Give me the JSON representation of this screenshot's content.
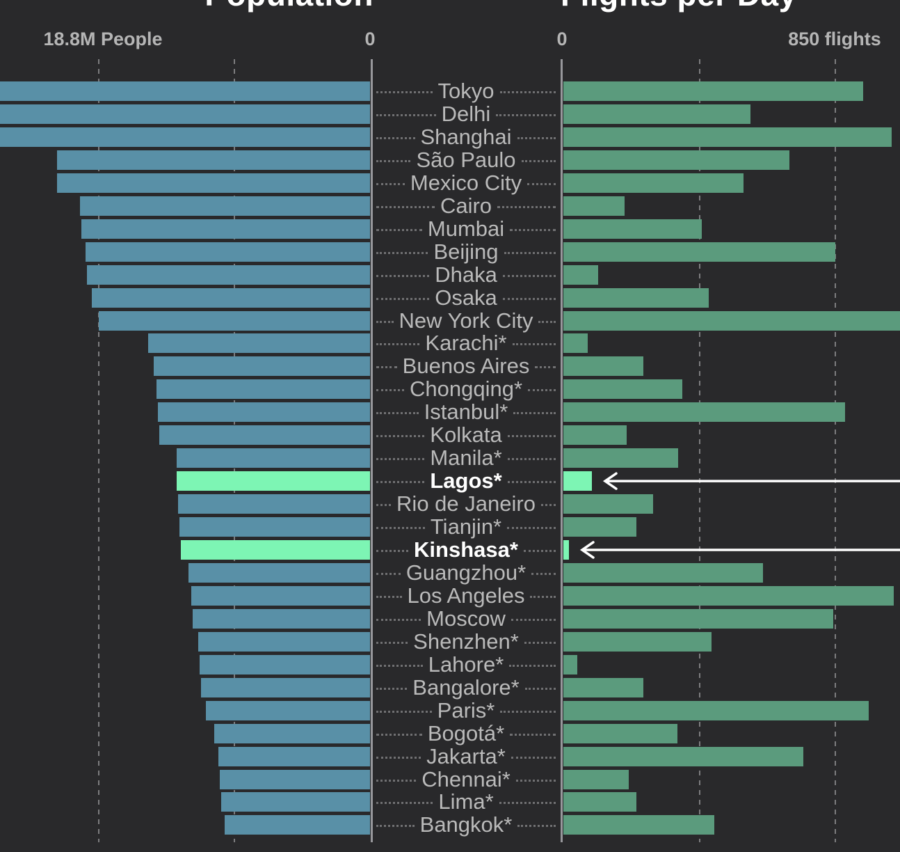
{
  "colors": {
    "background": "#29292b",
    "population_bar": "#5990a7",
    "flights_bar": "#5b9b7d",
    "highlight_bar": "#7df5b4",
    "city_label": "#bababa",
    "highlight_label": "#ffffff",
    "axis_label": "#b5b5b5",
    "title": "#ffffff",
    "gridline_dash": "#7d7d7f",
    "zero_axis": "#97979b",
    "leader_dot": "#707072",
    "arrow": "#ffffff"
  },
  "chart_data": {
    "type": "bar",
    "layout": "mirrored horizontal bars with shared centered city labels; left bars grow right-to-left, right bars grow left-to-right",
    "footnote_marker": "* shown after some city names",
    "left_chart": {
      "title": "Population",
      "unit": "millions of people",
      "axis": {
        "zero_label": "0",
        "max_label": "18.8M People",
        "gridline_values": [
          9.4,
          18.8
        ],
        "direction": "right-to-left",
        "clipped_at_value": 25.6
      }
    },
    "right_chart": {
      "title": "Flights per Day",
      "unit": "flights",
      "axis": {
        "zero_label": "0",
        "max_label": "850 flights",
        "gridline_values": [
          425,
          850
        ],
        "direction": "left-to-right",
        "clipped_at_value": 1052
      }
    },
    "cities": [
      {
        "label": "Tokyo",
        "population_m": null,
        "population_clipped": true,
        "flights_per_day": 938,
        "flights_clipped": false,
        "highlight": false
      },
      {
        "label": "Delhi",
        "population_m": null,
        "population_clipped": true,
        "flights_per_day": 585,
        "flights_clipped": false,
        "highlight": false
      },
      {
        "label": "Shanghai",
        "population_m": null,
        "population_clipped": true,
        "flights_per_day": 1025,
        "flights_clipped": false,
        "highlight": false
      },
      {
        "label": "São Paulo",
        "population_m": 21.7,
        "population_clipped": false,
        "flights_per_day": 706,
        "flights_clipped": false,
        "highlight": false
      },
      {
        "label": "Mexico City",
        "population_m": 21.7,
        "population_clipped": false,
        "flights_per_day": 562,
        "flights_clipped": false,
        "highlight": false
      },
      {
        "label": "Cairo",
        "population_m": 20.1,
        "population_clipped": false,
        "flights_per_day": 192,
        "flights_clipped": false,
        "highlight": false
      },
      {
        "label": "Mumbai",
        "population_m": 20.0,
        "population_clipped": false,
        "flights_per_day": 433,
        "flights_clipped": false,
        "highlight": false
      },
      {
        "label": "Beijing",
        "population_m": 19.7,
        "population_clipped": false,
        "flights_per_day": 850,
        "flights_clipped": false,
        "highlight": false
      },
      {
        "label": "Dhaka",
        "population_m": 19.6,
        "population_clipped": false,
        "flights_per_day": 109,
        "flights_clipped": false,
        "highlight": false
      },
      {
        "label": "Osaka",
        "population_m": 19.3,
        "population_clipped": false,
        "flights_per_day": 455,
        "flights_clipped": false,
        "highlight": false
      },
      {
        "label": "New York City",
        "population_m": 18.8,
        "population_clipped": false,
        "flights_per_day": null,
        "flights_clipped": true,
        "highlight": false
      },
      {
        "label": "Karachi*",
        "population_m": 15.4,
        "population_clipped": false,
        "flights_per_day": 76,
        "flights_clipped": false,
        "highlight": false
      },
      {
        "label": "Buenos Aires",
        "population_m": 15.0,
        "population_clipped": false,
        "flights_per_day": 249,
        "flights_clipped": false,
        "highlight": false
      },
      {
        "label": "Chongqing*",
        "population_m": 14.8,
        "population_clipped": false,
        "flights_per_day": 372,
        "flights_clipped": false,
        "highlight": false
      },
      {
        "label": "Istanbul*",
        "population_m": 14.7,
        "population_clipped": false,
        "flights_per_day": 881,
        "flights_clipped": false,
        "highlight": false
      },
      {
        "label": "Kolkata",
        "population_m": 14.6,
        "population_clipped": false,
        "flights_per_day": 198,
        "flights_clipped": false,
        "highlight": false
      },
      {
        "label": "Manila*",
        "population_m": 13.4,
        "population_clipped": false,
        "flights_per_day": 359,
        "flights_clipped": false,
        "highlight": false
      },
      {
        "label": "Lagos*",
        "population_m": 13.4,
        "population_clipped": false,
        "flights_per_day": 89,
        "flights_clipped": false,
        "highlight": true
      },
      {
        "label": "Rio de Janeiro",
        "population_m": 13.3,
        "population_clipped": false,
        "flights_per_day": 280,
        "flights_clipped": false,
        "highlight": false
      },
      {
        "label": "Tianjin*",
        "population_m": 13.2,
        "population_clipped": false,
        "flights_per_day": 229,
        "flights_clipped": false,
        "highlight": false
      },
      {
        "label": "Kinshasa*",
        "population_m": 13.1,
        "population_clipped": false,
        "flights_per_day": 17,
        "flights_clipped": false,
        "highlight": true
      },
      {
        "label": "Guangzhou*",
        "population_m": 12.6,
        "population_clipped": false,
        "flights_per_day": 624,
        "flights_clipped": false,
        "highlight": false
      },
      {
        "label": "Los Angeles",
        "population_m": 12.4,
        "population_clipped": false,
        "flights_per_day": 1032,
        "flights_clipped": false,
        "highlight": false
      },
      {
        "label": "Moscow",
        "population_m": 12.3,
        "population_clipped": false,
        "flights_per_day": 843,
        "flights_clipped": false,
        "highlight": false
      },
      {
        "label": "Shenzhen*",
        "population_m": 11.9,
        "population_clipped": false,
        "flights_per_day": 464,
        "flights_clipped": false,
        "highlight": false
      },
      {
        "label": "Lahore*",
        "population_m": 11.8,
        "population_clipped": false,
        "flights_per_day": 44,
        "flights_clipped": false,
        "highlight": false
      },
      {
        "label": "Bangalore*",
        "population_m": 11.7,
        "population_clipped": false,
        "flights_per_day": 249,
        "flights_clipped": false,
        "highlight": false
      },
      {
        "label": "Paris*",
        "population_m": 11.4,
        "population_clipped": false,
        "flights_per_day": 954,
        "flights_clipped": false,
        "highlight": false
      },
      {
        "label": "Bogotá*",
        "population_m": 10.8,
        "population_clipped": false,
        "flights_per_day": 356,
        "flights_clipped": false,
        "highlight": false
      },
      {
        "label": "Jakarta*",
        "population_m": 10.5,
        "population_clipped": false,
        "flights_per_day": 749,
        "flights_clipped": false,
        "highlight": false
      },
      {
        "label": "Chennai*",
        "population_m": 10.4,
        "population_clipped": false,
        "flights_per_day": 204,
        "flights_clipped": false,
        "highlight": false
      },
      {
        "label": "Lima*",
        "population_m": 10.3,
        "population_clipped": false,
        "flights_per_day": 229,
        "flights_clipped": false,
        "highlight": false
      },
      {
        "label": "Bangkok*",
        "population_m": 10.1,
        "population_clipped": false,
        "flights_per_day": 472,
        "flights_clipped": false,
        "highlight": false
      }
    ]
  },
  "annotations": {
    "arrows": [
      {
        "points_to": "Lagos*",
        "row_index": 17
      },
      {
        "points_to": "Kinshasa*",
        "row_index": 20
      }
    ]
  }
}
